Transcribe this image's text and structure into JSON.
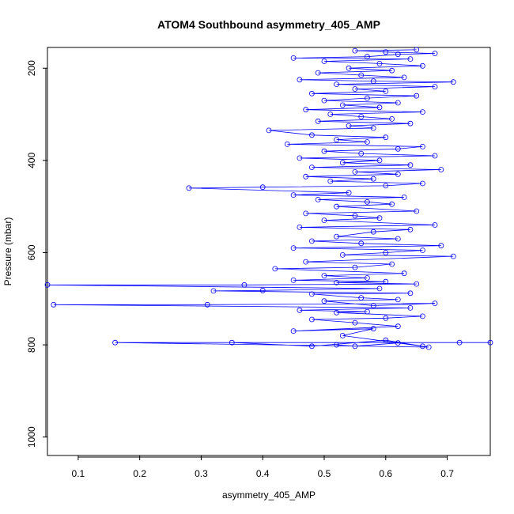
{
  "chart_data": {
    "type": "line",
    "title": "ATOM4 Southbound asymmetry_405_AMP",
    "xlabel": "asymmetry_405_AMP",
    "ylabel": "Pressure (mbar)",
    "xlim": [
      0.05,
      0.77
    ],
    "ylim": [
      1040,
      155
    ],
    "y_reversed": true,
    "x_ticks": [
      0.1,
      0.2,
      0.3,
      0.4,
      0.5,
      0.6,
      0.7
    ],
    "y_ticks": [
      200,
      400,
      600,
      800,
      1000
    ],
    "grid": false,
    "series": [
      {
        "color": "#0000ff",
        "marker": "open-circle",
        "points": [
          [
            0.52,
            800
          ],
          [
            0.55,
            803
          ],
          [
            0.62,
            796
          ],
          [
            0.67,
            805
          ],
          [
            0.16,
            795
          ],
          [
            0.72,
            795
          ],
          [
            0.77,
            795
          ],
          [
            0.35,
            795
          ],
          [
            0.48,
            803
          ],
          [
            0.6,
            790
          ],
          [
            0.66,
            803
          ],
          [
            0.53,
            780
          ],
          [
            0.58,
            765
          ],
          [
            0.45,
            770
          ],
          [
            0.62,
            760
          ],
          [
            0.55,
            752
          ],
          [
            0.48,
            745
          ],
          [
            0.6,
            742
          ],
          [
            0.66,
            738
          ],
          [
            0.52,
            730
          ],
          [
            0.57,
            728
          ],
          [
            0.46,
            725
          ],
          [
            0.64,
            720
          ],
          [
            0.06,
            713
          ],
          [
            0.31,
            713
          ],
          [
            0.68,
            710
          ],
          [
            0.58,
            715
          ],
          [
            0.5,
            705
          ],
          [
            0.62,
            702
          ],
          [
            0.56,
            698
          ],
          [
            0.48,
            690
          ],
          [
            0.64,
            688
          ],
          [
            0.32,
            683
          ],
          [
            0.4,
            682
          ],
          [
            0.59,
            678
          ],
          [
            0.05,
            670
          ],
          [
            0.37,
            670
          ],
          [
            0.65,
            668
          ],
          [
            0.52,
            665
          ],
          [
            0.6,
            663
          ],
          [
            0.45,
            660
          ],
          [
            0.57,
            655
          ],
          [
            0.5,
            650
          ],
          [
            0.63,
            645
          ],
          [
            0.42,
            635
          ],
          [
            0.55,
            632
          ],
          [
            0.61,
            625
          ],
          [
            0.47,
            620
          ],
          [
            0.71,
            608
          ],
          [
            0.53,
            605
          ],
          [
            0.6,
            600
          ],
          [
            0.66,
            595
          ],
          [
            0.45,
            590
          ],
          [
            0.69,
            585
          ],
          [
            0.56,
            580
          ],
          [
            0.48,
            575
          ],
          [
            0.62,
            570
          ],
          [
            0.52,
            565
          ],
          [
            0.58,
            555
          ],
          [
            0.64,
            550
          ],
          [
            0.46,
            545
          ],
          [
            0.68,
            540
          ],
          [
            0.5,
            530
          ],
          [
            0.59,
            525
          ],
          [
            0.55,
            520
          ],
          [
            0.47,
            515
          ],
          [
            0.65,
            510
          ],
          [
            0.52,
            500
          ],
          [
            0.61,
            495
          ],
          [
            0.57,
            490
          ],
          [
            0.49,
            485
          ],
          [
            0.63,
            480
          ],
          [
            0.45,
            475
          ],
          [
            0.54,
            470
          ],
          [
            0.28,
            460
          ],
          [
            0.4,
            458
          ],
          [
            0.6,
            455
          ],
          [
            0.66,
            450
          ],
          [
            0.51,
            445
          ],
          [
            0.58,
            440
          ],
          [
            0.47,
            435
          ],
          [
            0.62,
            430
          ],
          [
            0.55,
            425
          ],
          [
            0.69,
            420
          ],
          [
            0.48,
            415
          ],
          [
            0.64,
            410
          ],
          [
            0.53,
            405
          ],
          [
            0.59,
            400
          ],
          [
            0.46,
            395
          ],
          [
            0.68,
            390
          ],
          [
            0.56,
            385
          ],
          [
            0.5,
            380
          ],
          [
            0.62,
            375
          ],
          [
            0.66,
            370
          ],
          [
            0.44,
            365
          ],
          [
            0.57,
            360
          ],
          [
            0.52,
            355
          ],
          [
            0.6,
            350
          ],
          [
            0.48,
            345
          ],
          [
            0.41,
            335
          ],
          [
            0.58,
            330
          ],
          [
            0.54,
            325
          ],
          [
            0.64,
            320
          ],
          [
            0.49,
            315
          ],
          [
            0.61,
            310
          ],
          [
            0.56,
            305
          ],
          [
            0.51,
            300
          ],
          [
            0.66,
            295
          ],
          [
            0.47,
            290
          ],
          [
            0.59,
            285
          ],
          [
            0.53,
            280
          ],
          [
            0.62,
            275
          ],
          [
            0.5,
            270
          ],
          [
            0.57,
            265
          ],
          [
            0.65,
            260
          ],
          [
            0.48,
            255
          ],
          [
            0.6,
            250
          ],
          [
            0.55,
            245
          ],
          [
            0.68,
            240
          ],
          [
            0.52,
            235
          ],
          [
            0.71,
            230
          ],
          [
            0.58,
            228
          ],
          [
            0.46,
            225
          ],
          [
            0.63,
            220
          ],
          [
            0.56,
            215
          ],
          [
            0.49,
            210
          ],
          [
            0.61,
            205
          ],
          [
            0.54,
            200
          ],
          [
            0.66,
            195
          ],
          [
            0.59,
            190
          ],
          [
            0.5,
            185
          ],
          [
            0.64,
            180
          ],
          [
            0.45,
            178
          ],
          [
            0.57,
            175
          ],
          [
            0.62,
            170
          ],
          [
            0.68,
            168
          ],
          [
            0.6,
            165
          ],
          [
            0.55,
            162
          ],
          [
            0.65,
            160
          ]
        ]
      }
    ]
  }
}
